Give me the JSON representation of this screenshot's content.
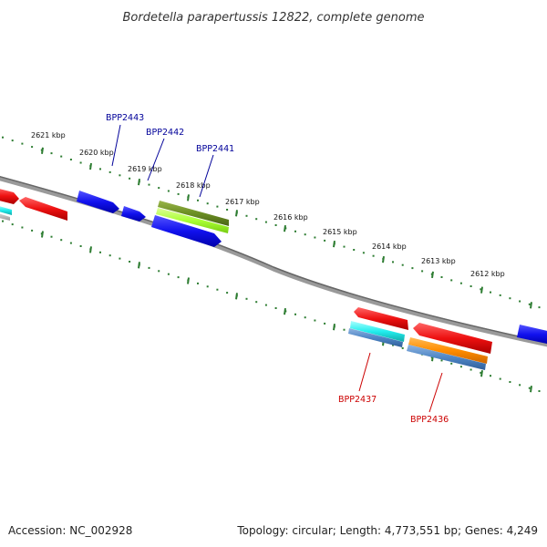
{
  "title": "Bordetella parapertussis 12822, complete genome",
  "footer": {
    "accession": "Accession: NC_002928",
    "summary": "Topology: circular; Length: 4,773,551 bp; Genes: 4,249"
  },
  "ticks": [
    {
      "label": "2621 kbp"
    },
    {
      "label": "2620 kbp"
    },
    {
      "label": "2619 kbp"
    },
    {
      "label": "2618 kbp"
    },
    {
      "label": "2617 kbp"
    },
    {
      "label": "2616 kbp"
    },
    {
      "label": "2615 kbp"
    },
    {
      "label": "2614 kbp"
    },
    {
      "label": "2613 kbp"
    },
    {
      "label": "2612 kbp"
    }
  ],
  "gene_labels": [
    {
      "name": "BPP2443",
      "color": "#000099"
    },
    {
      "name": "BPP2442",
      "color": "#000099"
    },
    {
      "name": "BPP2441",
      "color": "#000099"
    },
    {
      "name": "BPP2437",
      "color": "#cc0000"
    },
    {
      "name": "BPP2436",
      "color": "#cc0000"
    }
  ],
  "colors": {
    "backbone": "#808080",
    "tick": "#2e7d32",
    "gene_red": "#ee1111",
    "gene_blue": "#1111ee",
    "gene_cyan": "#22eeee",
    "gene_orange": "#ff8c00",
    "gene_steel": "#4f86c6",
    "gene_olive": "#6b8e23",
    "gene_lime": "#aaff33"
  }
}
